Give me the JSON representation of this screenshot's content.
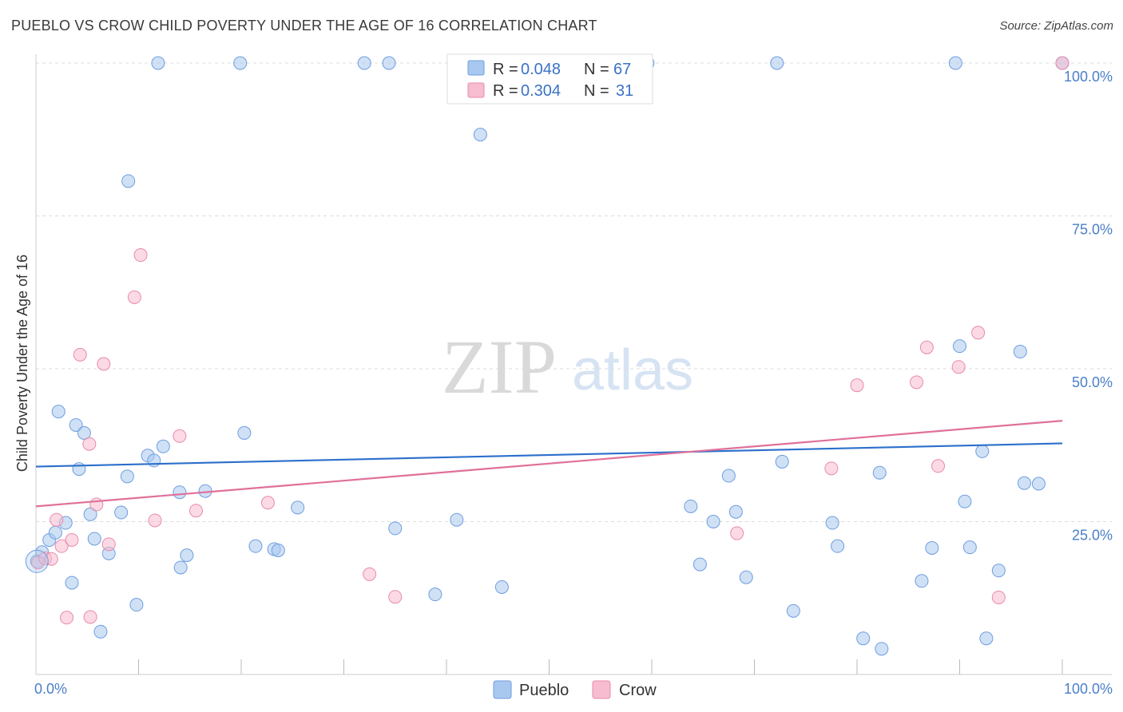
{
  "chart_data": {
    "type": "scatter",
    "title": "PUEBLO VS CROW CHILD POVERTY UNDER THE AGE OF 16 CORRELATION CHART",
    "source": "Source: ZipAtlas.com",
    "ylabel": "Child Poverty Under the Age of 16",
    "xlim": [
      0,
      100
    ],
    "ylim": [
      0,
      100
    ],
    "x_tick_labels": [
      "0.0%",
      "100.0%"
    ],
    "y_tick_labels": [
      {
        "value": 25,
        "label": "25.0%"
      },
      {
        "value": 50,
        "label": "50.0%"
      },
      {
        "value": 75,
        "label": "75.0%"
      },
      {
        "value": 100,
        "label": "100.0%"
      }
    ],
    "watermark": {
      "zip": "ZIP",
      "atlas": "atlas"
    },
    "legend": [
      {
        "name": "Pueblo",
        "r_label": "R =",
        "r": "0.048",
        "n_label": "N =",
        "n": "67",
        "color": "#a9c8ef",
        "stroke": "#6d9ee0"
      },
      {
        "name": "Crow",
        "r_label": "R =",
        "r": "0.304",
        "n_label": "N =",
        "n": "31",
        "color": "#f7bcd0",
        "stroke": "#e88aab"
      }
    ],
    "series": [
      {
        "name": "Pueblo",
        "color": "#a9c8ef",
        "stroke": "#6d9ee0",
        "line_color": "#2b6fcb",
        "trend": [
          [
            0,
            34.0
          ],
          [
            100,
            37.8
          ]
        ],
        "points": [
          [
            0.1,
            18.5
          ],
          [
            0.6,
            20.0
          ],
          [
            1.3,
            22.0
          ],
          [
            1.9,
            23.2
          ],
          [
            2.2,
            43.0
          ],
          [
            2.9,
            24.8
          ],
          [
            3.5,
            15.0
          ],
          [
            3.9,
            40.8
          ],
          [
            4.2,
            33.6
          ],
          [
            4.7,
            39.5
          ],
          [
            5.3,
            26.2
          ],
          [
            5.7,
            22.2
          ],
          [
            6.3,
            7.0
          ],
          [
            7.1,
            19.8
          ],
          [
            8.3,
            26.5
          ],
          [
            8.9,
            32.4
          ],
          [
            9.0,
            80.7
          ],
          [
            9.8,
            11.4
          ],
          [
            10.9,
            35.8
          ],
          [
            11.5,
            35.0
          ],
          [
            11.9,
            100.0
          ],
          [
            12.4,
            37.3
          ],
          [
            14.0,
            29.8
          ],
          [
            14.1,
            17.5
          ],
          [
            14.7,
            19.5
          ],
          [
            16.5,
            30.0
          ],
          [
            19.9,
            100.0
          ],
          [
            20.3,
            39.5
          ],
          [
            21.4,
            21.0
          ],
          [
            23.2,
            20.5
          ],
          [
            23.6,
            20.3
          ],
          [
            25.5,
            27.3
          ],
          [
            32.0,
            100.0
          ],
          [
            34.4,
            100.0
          ],
          [
            35.0,
            23.9
          ],
          [
            38.9,
            13.1
          ],
          [
            41.0,
            25.3
          ],
          [
            43.3,
            88.3
          ],
          [
            45.4,
            14.3
          ],
          [
            59.6,
            100.0
          ],
          [
            63.8,
            27.5
          ],
          [
            64.7,
            18.0
          ],
          [
            66.0,
            25.0
          ],
          [
            67.5,
            32.5
          ],
          [
            68.2,
            26.6
          ],
          [
            69.2,
            15.9
          ],
          [
            72.2,
            100.0
          ],
          [
            72.7,
            34.8
          ],
          [
            73.8,
            10.4
          ],
          [
            77.6,
            24.8
          ],
          [
            78.1,
            21.0
          ],
          [
            80.6,
            5.9
          ],
          [
            82.2,
            33.0
          ],
          [
            82.4,
            4.2
          ],
          [
            86.3,
            15.3
          ],
          [
            87.3,
            20.7
          ],
          [
            89.6,
            100.0
          ],
          [
            90.0,
            53.7
          ],
          [
            90.5,
            28.3
          ],
          [
            91.0,
            20.8
          ],
          [
            92.2,
            36.5
          ],
          [
            92.6,
            5.9
          ],
          [
            93.8,
            17.0
          ],
          [
            95.9,
            52.8
          ],
          [
            96.3,
            31.3
          ],
          [
            97.7,
            31.2
          ],
          [
            100.0,
            100.0
          ]
        ]
      },
      {
        "name": "Crow",
        "color": "#f7bcd0",
        "stroke": "#e88aab",
        "line_color": "#e0709a",
        "trend": [
          [
            0,
            27.5
          ],
          [
            100,
            41.5
          ]
        ],
        "points": [
          [
            0.2,
            18.3
          ],
          [
            0.9,
            19.0
          ],
          [
            1.5,
            18.9
          ],
          [
            2.0,
            25.3
          ],
          [
            2.5,
            21.0
          ],
          [
            3.0,
            9.3
          ],
          [
            3.5,
            22.0
          ],
          [
            4.3,
            52.3
          ],
          [
            5.2,
            37.7
          ],
          [
            5.3,
            9.4
          ],
          [
            5.9,
            27.8
          ],
          [
            6.6,
            50.8
          ],
          [
            7.1,
            21.3
          ],
          [
            9.6,
            61.7
          ],
          [
            10.2,
            68.6
          ],
          [
            11.6,
            25.2
          ],
          [
            14.0,
            39.0
          ],
          [
            15.6,
            26.8
          ],
          [
            22.6,
            28.1
          ],
          [
            32.5,
            16.4
          ],
          [
            35.0,
            12.7
          ],
          [
            68.3,
            23.1
          ],
          [
            77.5,
            33.7
          ],
          [
            80.0,
            47.3
          ],
          [
            85.8,
            47.8
          ],
          [
            86.8,
            53.5
          ],
          [
            87.9,
            34.1
          ],
          [
            89.9,
            50.3
          ],
          [
            91.8,
            55.9
          ],
          [
            93.8,
            12.6
          ],
          [
            100.0,
            100.0
          ]
        ]
      }
    ]
  }
}
